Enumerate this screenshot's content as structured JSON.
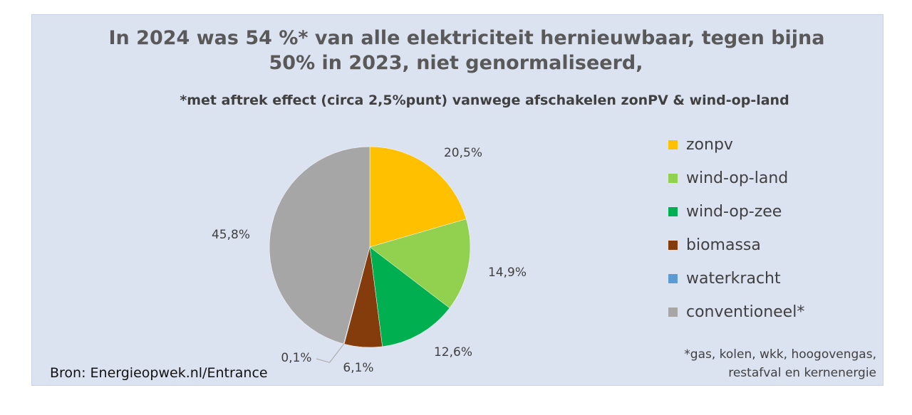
{
  "title_line1": "In 2024 was 54 %* van alle elektriciteit hernieuwbaar, tegen bijna",
  "title_line2": "50% in 2023, niet genormaliseerd,",
  "subtitle": "*met aftrek effect (circa 2,5%punt) vanwege afschakelen zonPV & wind-op-land",
  "footnote_line1": "*gas, kolen, wkk, hoogovengas,",
  "footnote_line2": "restafval en kernenergie",
  "source": "Bron: Energieopwek.nl/Entrance",
  "chart_data": {
    "type": "pie",
    "title": "In 2024 was 54 %* van alle elektriciteit hernieuwbaar, tegen bijna 50% in 2023, niet genormaliseerd,",
    "subtitle": "*met aftrek effect (circa 2,5%punt) vanwege afschakelen zonPV & wind-op-land",
    "legend_position": "right",
    "slices": [
      {
        "name": "zonpv",
        "value": 20.5,
        "label": "20,5%",
        "color": "#ffc000"
      },
      {
        "name": "wind-op-land",
        "value": 14.9,
        "label": "14,9%",
        "color": "#92d050"
      },
      {
        "name": "wind-op-zee",
        "value": 12.6,
        "label": "12,6%",
        "color": "#00b050"
      },
      {
        "name": "biomassa",
        "value": 6.1,
        "label": "6,1%",
        "color": "#843c0c"
      },
      {
        "name": "waterkracht",
        "value": 0.1,
        "label": "0,1%",
        "color": "#5b9bd5"
      },
      {
        "name": "conventioneel*",
        "value": 45.8,
        "label": "45,8%",
        "color": "#a6a6a6"
      }
    ]
  }
}
